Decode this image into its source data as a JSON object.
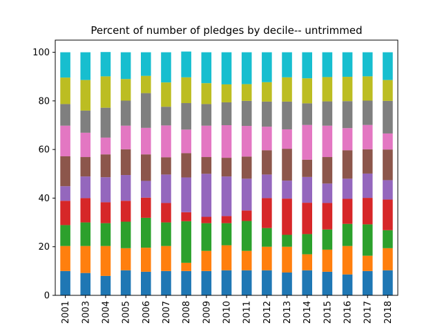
{
  "chart_data": {
    "type": "bar",
    "stacked": true,
    "title": "Percent of number of pledges by decile-- untrimmed",
    "xlabel": "",
    "ylabel": "",
    "ylim": [
      0,
      105
    ],
    "yticks": [
      0,
      20,
      40,
      60,
      80,
      100
    ],
    "legend": "none",
    "grid": false,
    "categories": [
      "2001",
      "2003",
      "2004",
      "2005",
      "2006",
      "2007",
      "2008",
      "2009",
      "2010",
      "2011",
      "2012",
      "2013",
      "2014",
      "2015",
      "2016",
      "2017",
      "2018"
    ],
    "series": [
      {
        "color": "#1f77b4",
        "values": [
          10.0,
          9.2,
          8.0,
          10.3,
          9.7,
          10.0,
          10.0,
          10.0,
          10.3,
          10.3,
          10.3,
          9.4,
          10.3,
          9.7,
          8.6,
          10.0,
          10.3
        ]
      },
      {
        "color": "#ff7f0e",
        "values": [
          10.3,
          11.1,
          12.3,
          9.1,
          9.9,
          10.3,
          3.4,
          8.3,
          10.3,
          8.0,
          9.7,
          10.6,
          6.6,
          9.1,
          11.7,
          6.3,
          9.1
        ]
      },
      {
        "color": "#2ca02c",
        "values": [
          8.6,
          9.7,
          9.4,
          10.9,
          12.3,
          9.7,
          17.1,
          11.4,
          9.1,
          12.3,
          7.7,
          4.9,
          8.3,
          8.3,
          9.1,
          12.9,
          7.4
        ]
      },
      {
        "color": "#d62728",
        "values": [
          10.0,
          10.0,
          8.6,
          8.6,
          8.3,
          8.0,
          3.7,
          2.6,
          2.9,
          4.3,
          12.3,
          14.9,
          12.9,
          10.9,
          10.3,
          10.9,
          12.6
        ]
      },
      {
        "color": "#9467bd",
        "values": [
          6.0,
          8.9,
          10.3,
          10.6,
          6.9,
          11.7,
          14.3,
          17.7,
          16.3,
          13.1,
          9.7,
          7.4,
          10.6,
          8.0,
          8.3,
          10.0,
          8.0
        ]
      },
      {
        "color": "#8c564b",
        "values": [
          12.3,
          8.0,
          9.4,
          10.6,
          10.9,
          7.1,
          10.0,
          6.9,
          7.7,
          9.1,
          10.0,
          13.1,
          7.1,
          10.9,
          11.7,
          10.0,
          12.6
        ]
      },
      {
        "color": "#e377c2",
        "values": [
          12.6,
          10.0,
          6.9,
          9.7,
          10.9,
          13.1,
          9.7,
          12.9,
          13.4,
          12.6,
          9.7,
          8.0,
          14.3,
          12.9,
          9.1,
          10.0,
          6.6
        ]
      },
      {
        "color": "#7f7f7f",
        "values": [
          8.9,
          9.1,
          12.3,
          10.3,
          14.3,
          7.7,
          10.9,
          8.9,
          9.4,
          10.3,
          10.3,
          11.4,
          8.9,
          10.0,
          11.1,
          10.0,
          13.4
        ]
      },
      {
        "color": "#bcbd22",
        "values": [
          10.9,
          12.6,
          12.9,
          8.9,
          7.1,
          10.0,
          10.6,
          8.6,
          7.4,
          6.9,
          8.0,
          10.0,
          10.3,
          10.0,
          10.0,
          10.0,
          8.6
        ]
      },
      {
        "color": "#17becf",
        "values": [
          10.4,
          11.4,
          10.0,
          11.0,
          9.7,
          12.4,
          10.6,
          12.7,
          13.2,
          13.1,
          12.3,
          10.3,
          10.7,
          10.2,
          10.1,
          9.9,
          11.4
        ]
      }
    ]
  }
}
